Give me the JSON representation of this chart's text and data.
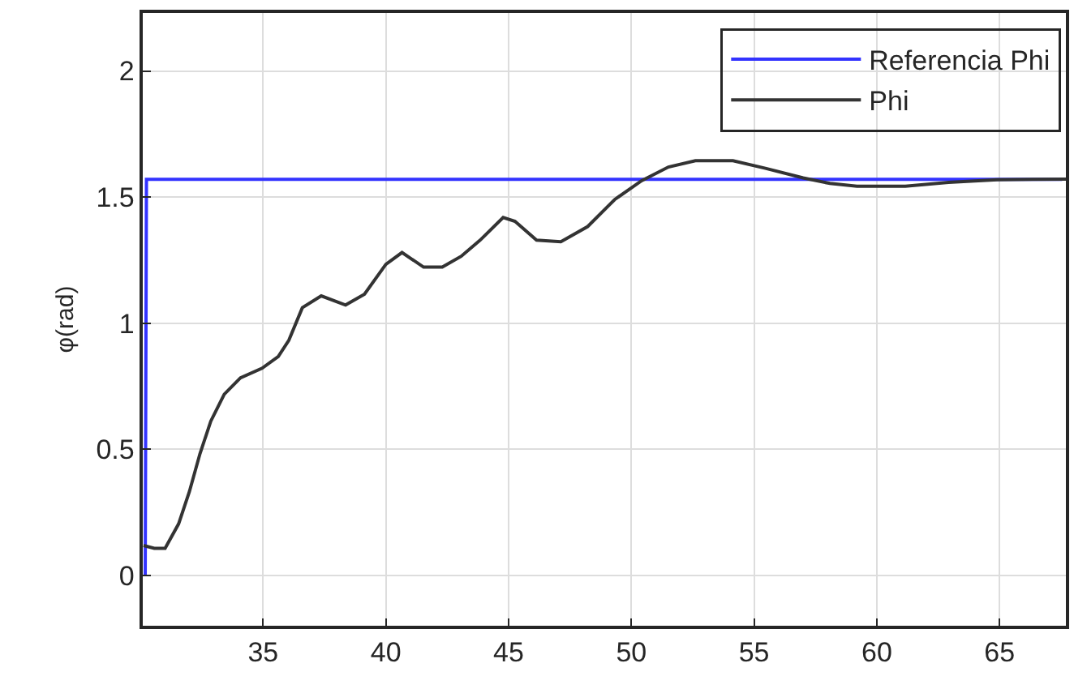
{
  "chart_data": {
    "type": "line",
    "ylabel": "φ(rad)",
    "xlim": [
      30.1,
      67.7
    ],
    "ylim": [
      -0.2,
      2.23
    ],
    "xticks": [
      35,
      40,
      45,
      50,
      55,
      60,
      65
    ],
    "yticks": [
      0,
      0.5,
      1,
      1.5,
      2
    ],
    "grid": true,
    "legend": "top right",
    "marker": "none",
    "line_style": "solid",
    "series": [
      {
        "name": "Referencia Phi",
        "color": "#3333ff",
        "x": [
          30.2,
          30.25,
          67.55
        ],
        "values": [
          0,
          1.57,
          1.57
        ]
      },
      {
        "name": "Phi",
        "color": "#333333",
        "x": [
          30.13,
          30.57,
          31.01,
          31.56,
          32.0,
          32.43,
          32.87,
          33.42,
          34.08,
          34.96,
          35.62,
          36.05,
          36.6,
          37.37,
          38.36,
          39.13,
          40.0,
          40.66,
          41.54,
          42.3,
          43.07,
          43.84,
          44.78,
          45.26,
          46.14,
          47.13,
          48.22,
          49.32,
          50.42,
          51.51,
          52.61,
          54.14,
          55.46,
          57.0,
          58.09,
          59.19,
          61.16,
          62.92,
          64.9,
          67.7
        ],
        "values": [
          0.118,
          0.107,
          0.107,
          0.204,
          0.332,
          0.482,
          0.611,
          0.718,
          0.783,
          0.821,
          0.868,
          0.932,
          1.061,
          1.108,
          1.072,
          1.115,
          1.233,
          1.28,
          1.222,
          1.222,
          1.265,
          1.329,
          1.419,
          1.404,
          1.329,
          1.323,
          1.383,
          1.49,
          1.565,
          1.619,
          1.644,
          1.644,
          1.614,
          1.576,
          1.554,
          1.543,
          1.543,
          1.558,
          1.569,
          1.571
        ]
      }
    ]
  }
}
